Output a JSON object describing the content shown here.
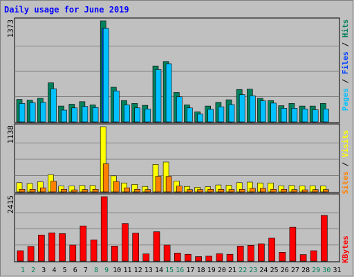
{
  "chart_data": {
    "type": "bar",
    "title": "Daily usage for June 2019",
    "colors": {
      "background": "#c0c0c0",
      "title": "#0000ff",
      "hits": "#00805c",
      "files": "#0040ff",
      "pages": "#00c0ff",
      "visits": "#ffff00",
      "sites": "#ff8000",
      "kbytes": "#ff0000",
      "weekend_day": "#00805c",
      "weekday_day": "#000000",
      "grid": "#808080"
    },
    "categories": [
      "1",
      "2",
      "3",
      "4",
      "5",
      "6",
      "7",
      "8",
      "9",
      "10",
      "11",
      "12",
      "13",
      "14",
      "15",
      "16",
      "17",
      "18",
      "19",
      "20",
      "21",
      "22",
      "23",
      "24",
      "25",
      "26",
      "27",
      "28",
      "29",
      "30",
      "31"
    ],
    "weekend_days": [
      "1",
      "2",
      "8",
      "9",
      "15",
      "16",
      "22",
      "23",
      "29",
      "30"
    ],
    "panels": [
      {
        "name": "hits-files-pages",
        "ymax_label": "1373",
        "ylim": [
          0,
          1373
        ],
        "ylabel_parts": [
          {
            "text": "Pages",
            "color": "#00c0ff"
          },
          {
            "text": " / ",
            "color": "#000000"
          },
          {
            "text": "Files",
            "color": "#0040ff"
          },
          {
            "text": " / ",
            "color": "#000000"
          },
          {
            "text": "Hits",
            "color": "#00805c"
          }
        ],
        "series": [
          {
            "name": "Hits",
            "color": "#00805c",
            "values": [
              305,
              295,
              320,
              530,
              215,
              240,
              275,
              230,
              1373,
              470,
              290,
              250,
              225,
              760,
              820,
              400,
              230,
              135,
              215,
              265,
              300,
              440,
              445,
              320,
              290,
              220,
              250,
              215,
              215,
              250,
              null
            ]
          },
          {
            "name": "Files",
            "color": "#0040ff",
            "values": [
              0,
              0,
              0,
              0,
              0,
              0,
              0,
              0,
              1270,
              0,
              0,
              0,
              0,
              0,
              0,
              0,
              0,
              0,
              0,
              0,
              0,
              0,
              0,
              0,
              0,
              0,
              0,
              0,
              0,
              0,
              null
            ]
          },
          {
            "name": "Pages",
            "color": "#00c0ff",
            "values": [
              250,
              260,
              265,
              450,
              160,
              190,
              210,
              195,
              1270,
              420,
              230,
              190,
              175,
              710,
              790,
              340,
              190,
              105,
              170,
              205,
              235,
              370,
              355,
              285,
              255,
              185,
              185,
              175,
              165,
              175,
              null
            ]
          }
        ]
      },
      {
        "name": "visits-sites",
        "ymax_label": "1138",
        "ylim": [
          0,
          1138
        ],
        "ylabel_parts": [
          {
            "text": "Sites",
            "color": "#ff8000"
          },
          {
            "text": " / ",
            "color": "#000000"
          },
          {
            "text": "Visits",
            "color": "#ffff00"
          }
        ],
        "series": [
          {
            "name": "Visits",
            "color": "#ffff00",
            "values": [
              160,
              145,
              175,
              300,
              100,
              100,
              110,
              110,
              1138,
              280,
              155,
              130,
              95,
              480,
              520,
              190,
              95,
              80,
              90,
              120,
              115,
              160,
              170,
              155,
              155,
              105,
              110,
              105,
              105,
              100,
              null
            ]
          },
          {
            "name": "Sites",
            "color": "#ff8000",
            "values": [
              45,
              45,
              70,
              185,
              45,
              35,
              40,
              45,
              490,
              180,
              70,
              45,
              40,
              270,
              270,
              100,
              40,
              40,
              45,
              45,
              40,
              45,
              60,
              60,
              45,
              45,
              40,
              35,
              40,
              40,
              null
            ]
          }
        ]
      },
      {
        "name": "kbytes",
        "ymax_label": "2415",
        "ylim": [
          0,
          2415
        ],
        "ylabel_parts": [
          {
            "text": "KBytes",
            "color": "#ff0000"
          }
        ],
        "series": [
          {
            "name": "KBytes",
            "color": "#ff0000",
            "values": [
              390,
              550,
              980,
              1060,
              1030,
              600,
              1320,
              795,
              2415,
              560,
              1410,
              1050,
              270,
              1100,
              600,
              300,
              255,
              170,
              185,
              275,
              255,
              560,
              590,
              650,
              860,
              330,
              1270,
              245,
              390,
              1710,
              null
            ]
          }
        ]
      }
    ]
  }
}
